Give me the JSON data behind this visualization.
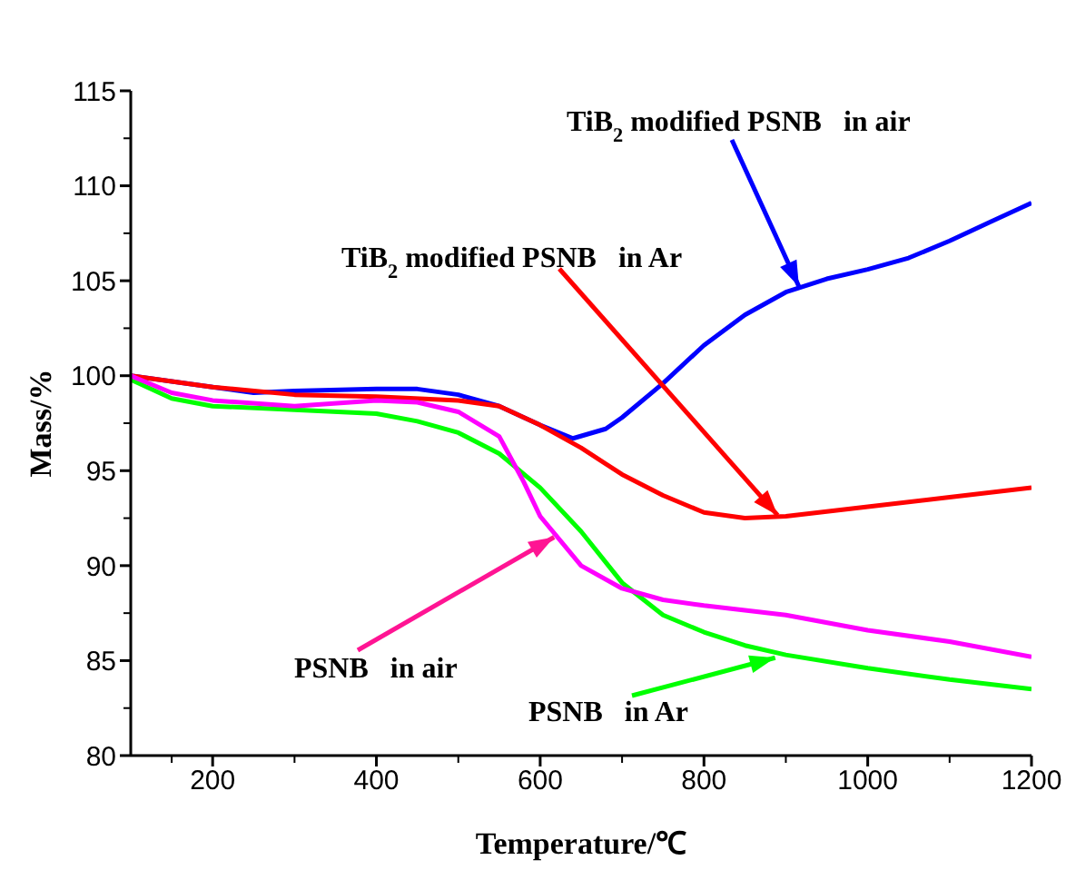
{
  "chart_data": {
    "type": "line",
    "xlabel": "Temperature/℃",
    "ylabel": "Mass/%",
    "xlim": [
      100,
      1200
    ],
    "ylim": [
      80,
      115
    ],
    "xticks": [
      200,
      400,
      600,
      800,
      1000,
      1200
    ],
    "yticks": [
      80,
      85,
      90,
      95,
      100,
      105,
      110,
      115
    ],
    "grid": false,
    "legend": false,
    "marker": "none",
    "line_style": "solid",
    "series": [
      {
        "color": "#0000ff",
        "x": [
          100,
          200,
          250,
          300,
          400,
          450,
          500,
          550,
          600,
          640,
          680,
          700,
          750,
          800,
          850,
          900,
          950,
          1000,
          1050,
          1100,
          1150,
          1200
        ],
        "values": [
          100,
          99.4,
          99.1,
          99.2,
          99.3,
          99.3,
          99.0,
          98.4,
          97.4,
          96.7,
          97.2,
          97.8,
          99.6,
          101.6,
          103.2,
          104.4,
          105.1,
          105.6,
          106.2,
          107.1,
          108.1,
          109.1
        ]
      },
      {
        "color": "#ff0000",
        "x": [
          100,
          200,
          300,
          400,
          500,
          550,
          600,
          650,
          700,
          750,
          800,
          850,
          900,
          1000,
          1100,
          1200
        ],
        "values": [
          100,
          99.4,
          99.0,
          98.9,
          98.7,
          98.4,
          97.4,
          96.2,
          94.8,
          93.7,
          92.8,
          92.5,
          92.6,
          93.1,
          93.6,
          94.1
        ]
      },
      {
        "color": "#00ff00",
        "x": [
          100,
          150,
          200,
          300,
          400,
          450,
          500,
          550,
          600,
          650,
          700,
          750,
          800,
          850,
          900,
          1000,
          1100,
          1200
        ],
        "values": [
          99.8,
          98.8,
          98.4,
          98.2,
          98.0,
          97.6,
          97.0,
          95.9,
          94.1,
          91.8,
          89.1,
          87.4,
          86.5,
          85.8,
          85.3,
          84.6,
          84.0,
          83.5
        ]
      },
      {
        "color": "#ff00ff",
        "x": [
          100,
          150,
          200,
          300,
          400,
          450,
          500,
          550,
          580,
          600,
          650,
          700,
          750,
          800,
          900,
          1000,
          1100,
          1200
        ],
        "values": [
          100,
          99.1,
          98.7,
          98.4,
          98.7,
          98.6,
          98.1,
          96.8,
          94.4,
          92.6,
          90.0,
          88.8,
          88.2,
          87.9,
          87.4,
          86.6,
          86.0,
          85.2
        ]
      }
    ],
    "annotations": [
      {
        "text": "TiB$_{2}$ modified PSNB   in air",
        "x": 916,
        "y": 104.7
      },
      {
        "text": "TiB$_{2}$ modified PSNB   in Ar",
        "x": 890,
        "y": 92.65
      },
      {
        "text": "PSNB   in air",
        "x": 617,
        "y": 91.5
      },
      {
        "text": "PSNB   in Ar",
        "x": 887,
        "y": 85.15
      }
    ]
  }
}
